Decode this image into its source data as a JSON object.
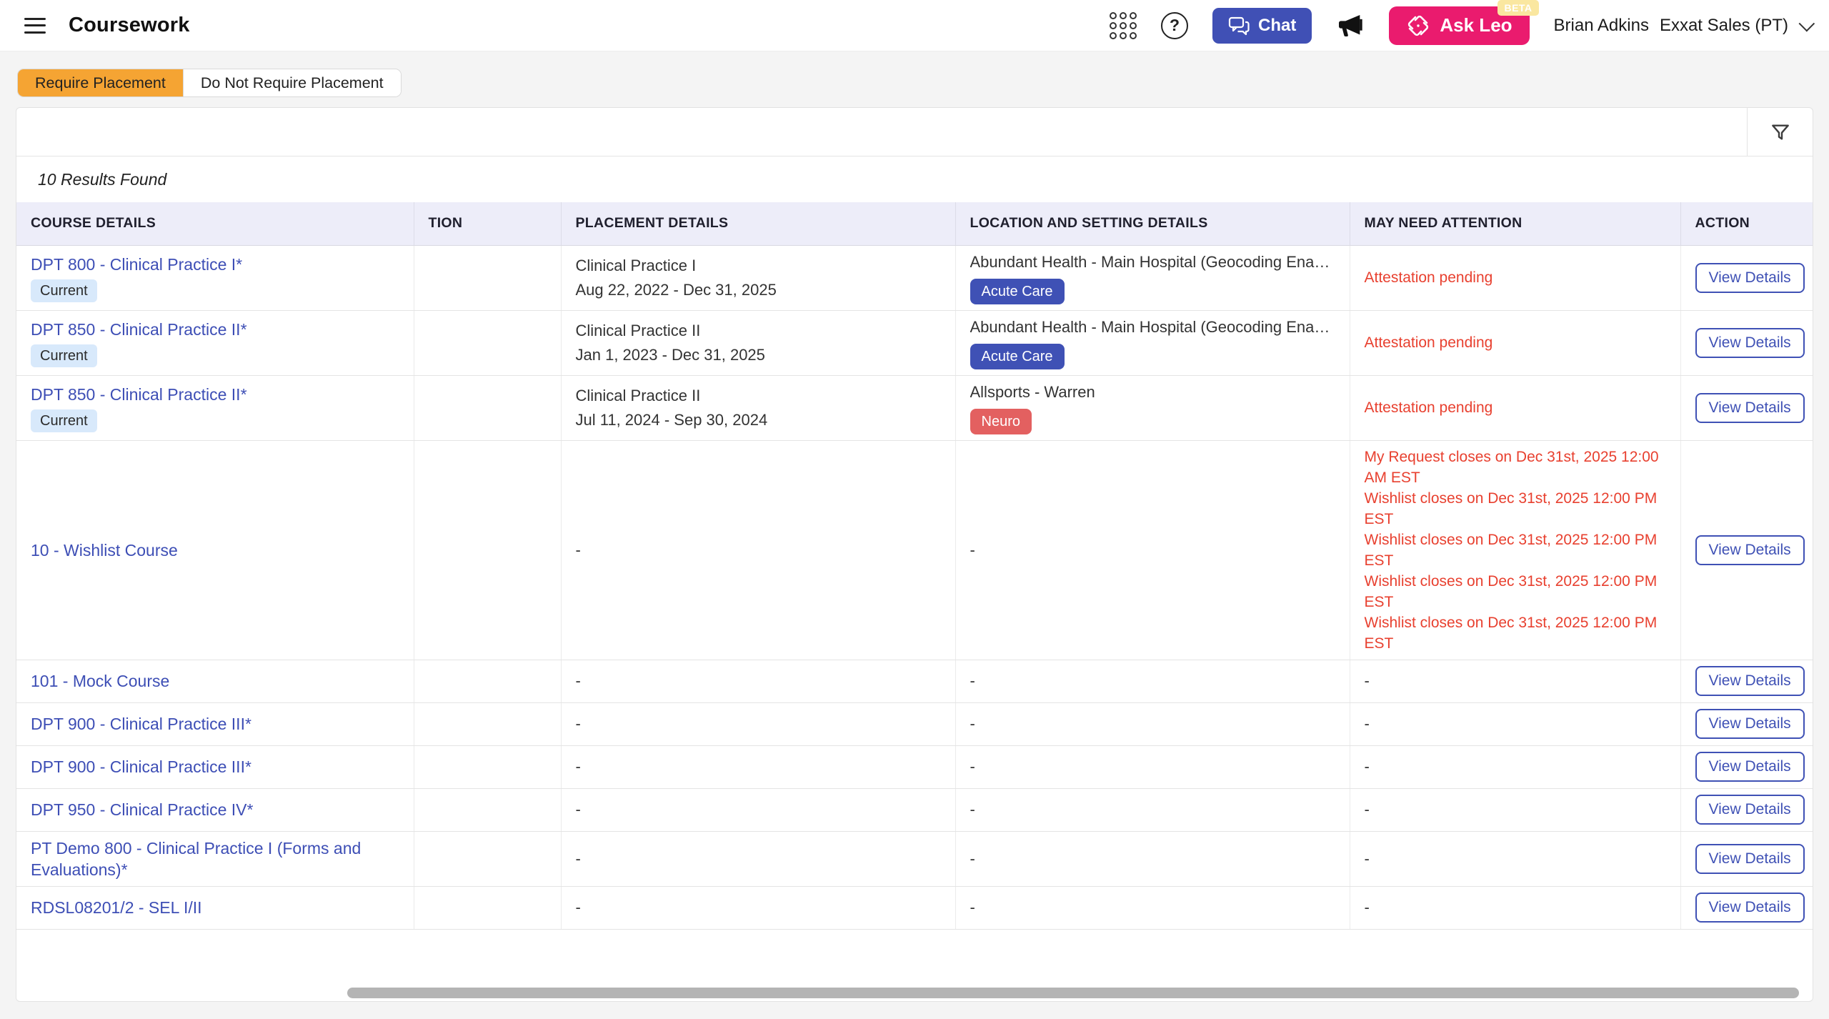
{
  "header": {
    "title": "Coursework",
    "chat_label": "Chat",
    "ask_leo_label": "Ask Leo",
    "beta_label": "BETA",
    "user_name": "Brian Adkins",
    "program_name": "Exxat Sales (PT)"
  },
  "tabs": [
    {
      "label": "Require Placement",
      "active": true
    },
    {
      "label": "Do Not Require Placement",
      "active": false
    }
  ],
  "results_summary": "10 Results Found",
  "colors": {
    "accent_indigo": "#3f51b5",
    "brand_pink": "#ea1b6e",
    "tab_orange": "#f5a433",
    "attention_red": "#e8402f",
    "neuro_badge_red": "#e36060",
    "current_badge_blue": "#d8e9fb",
    "link_blue": "#3d4eb5",
    "table_header_bg": "#ededf9"
  },
  "icons": [
    "hamburger-icon",
    "apps-grid-icon",
    "help-icon",
    "chat-bubbles-icon",
    "megaphone-icon",
    "ask-leo-logo-icon",
    "chevron-down-icon",
    "filter-funnel-icon"
  ],
  "table": {
    "columns": [
      "COURSE DETAILS",
      "TION",
      "PLACEMENT DETAILS",
      "LOCATION AND SETTING DETAILS",
      "MAY NEED ATTENTION",
      "ACTION"
    ],
    "action_label": "View Details",
    "rows": [
      {
        "course": "DPT 800 - Clinical Practice I*",
        "status_badge": "Current",
        "placement": {
          "title": "Clinical Practice I",
          "dates": "Aug 22, 2022 - Dec 31, 2025"
        },
        "location": {
          "name": "Abundant Health - Main Hospital (Geocoding Enabled, lo…",
          "badge": {
            "label": "Acute Care",
            "color": "#3f51b5"
          }
        },
        "attention": [
          "Attestation pending"
        ]
      },
      {
        "course": "DPT 850 - Clinical Practice II*",
        "status_badge": "Current",
        "placement": {
          "title": "Clinical Practice II",
          "dates": "Jan 1, 2023 - Dec 31, 2025"
        },
        "location": {
          "name": "Abundant Health - Main Hospital (Geocoding Enabled, lo…",
          "badge": {
            "label": "Acute Care",
            "color": "#3f51b5"
          }
        },
        "attention": [
          "Attestation pending"
        ]
      },
      {
        "course": "DPT 850 - Clinical Practice II*",
        "status_badge": "Current",
        "placement": {
          "title": "Clinical Practice II",
          "dates": "Jul 11, 2024 - Sep 30, 2024"
        },
        "location": {
          "name": "Allsports - Warren",
          "badge": {
            "label": "Neuro",
            "color": "#e36060"
          }
        },
        "attention": [
          "Attestation pending"
        ]
      },
      {
        "course": "10 - Wishlist Course",
        "status_badge": null,
        "placement": "-",
        "location": "-",
        "attention": [
          "My Request closes on Dec 31st, 2025 12:00 AM EST",
          "Wishlist closes on Dec 31st, 2025 12:00 PM EST",
          "Wishlist closes on Dec 31st, 2025 12:00 PM EST",
          "Wishlist closes on Dec 31st, 2025 12:00 PM EST",
          "Wishlist closes on Dec 31st, 2025 12:00 PM EST"
        ]
      },
      {
        "course": "101 - Mock Course",
        "status_badge": null,
        "placement": "-",
        "location": "-",
        "attention": "-"
      },
      {
        "course": "DPT 900 - Clinical Practice III*",
        "status_badge": null,
        "placement": "-",
        "location": "-",
        "attention": "-"
      },
      {
        "course": "DPT 900 - Clinical Practice III*",
        "status_badge": null,
        "placement": "-",
        "location": "-",
        "attention": "-"
      },
      {
        "course": "DPT 950 - Clinical Practice IV*",
        "status_badge": null,
        "placement": "-",
        "location": "-",
        "attention": "-"
      },
      {
        "course": "PT Demo 800 - Clinical Practice I (Forms and Evaluations)*",
        "status_badge": null,
        "placement": "-",
        "location": "-",
        "attention": "-"
      },
      {
        "course": "RDSL08201/2 - SEL I/II",
        "status_badge": null,
        "placement": "-",
        "location": "-",
        "attention": "-"
      }
    ]
  }
}
